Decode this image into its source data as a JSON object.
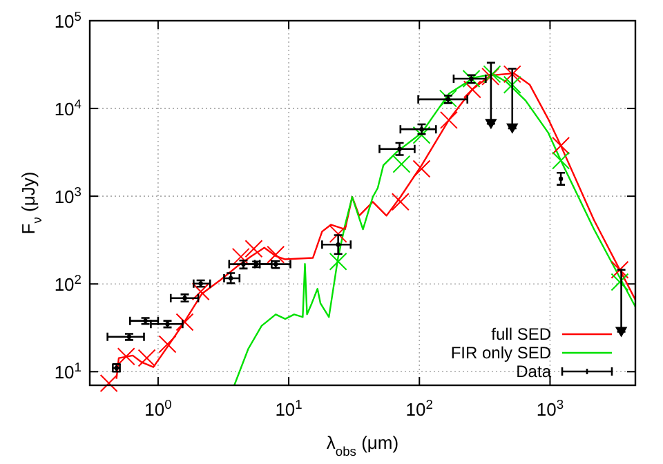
{
  "chart_data": {
    "type": "line",
    "xlabel": "λ$_{obs}$ (μm)",
    "ylabel": "F$_{ν}$ (μJy)",
    "log": "xy",
    "grid": true,
    "legend": "bottom right",
    "xlim": [
      0.3,
      4500
    ],
    "ylim": [
      7,
      100000
    ],
    "xticks": [
      {
        "value": 1,
        "label": "10$^{0}$"
      },
      {
        "value": 10,
        "label": "10$^{1}$"
      },
      {
        "value": 100,
        "label": "10$^{2}$"
      },
      {
        "value": 1000,
        "label": "10$^{3}$"
      }
    ],
    "yticks": [
      {
        "value": 10,
        "label": "10$^{1}$"
      },
      {
        "value": 100,
        "label": "10$^{2}$"
      },
      {
        "value": 1000,
        "label": "10$^{3}$"
      },
      {
        "value": 10000,
        "label": "10$^{4}$"
      },
      {
        "value": 100000,
        "label": "10$^{5}$"
      }
    ],
    "series": [
      {
        "name": "full SED",
        "color": "#ff0000",
        "x": [
          0.48,
          0.5,
          0.64,
          0.75,
          0.92,
          1.22,
          1.56,
          2.17,
          3.0,
          4.15,
          5.2,
          6.5,
          7.95,
          9.4,
          15.3,
          18,
          21,
          27,
          30.6,
          34.6,
          44,
          56,
          71.6,
          104,
          168,
          254,
          350,
          527,
          700,
          970,
          1210,
          2170,
          4500
        ],
        "values": [
          8.3,
          14.3,
          15.3,
          12.8,
          11.3,
          20.6,
          35.3,
          77.6,
          111,
          164,
          208,
          259,
          208,
          191,
          198,
          395,
          473,
          420,
          980,
          600,
          862,
          600,
          980,
          2250,
          7380,
          16500,
          23800,
          25200,
          18600,
          7550,
          3760,
          535,
          66
        ]
      },
      {
        "name": "FIR only SED",
        "color": "#00e000",
        "x": [
          3.83,
          4.9,
          6.2,
          7.95,
          9.4,
          11,
          12.8,
          13.3,
          13.8,
          15,
          16.6,
          17.5,
          20.3,
          23.9,
          27,
          30.6,
          37,
          44,
          48,
          53,
          68,
          104,
          168,
          263,
          366,
          465,
          650,
          970,
          1210,
          2170,
          4500
        ],
        "values": [
          7,
          18.2,
          33.3,
          45,
          40,
          45,
          42,
          169,
          45,
          60,
          88,
          60,
          42,
          203,
          470,
          980,
          420,
          980,
          1240,
          2250,
          3250,
          5270,
          14700,
          22500,
          24600,
          20000,
          12300,
          5270,
          2550,
          420,
          55
        ]
      },
      {
        "type": "scatter",
        "color": "#ff0000",
        "marker": "cross",
        "x": [
          0.42,
          0.57,
          0.82,
          1.18,
          1.6,
          2.12,
          4.3,
          5.4,
          7.95,
          23.9,
          71.6,
          104,
          168,
          254,
          350,
          514,
          1210,
          3420
        ],
        "values": [
          7.4,
          14.9,
          14.3,
          20.6,
          36.7,
          82,
          204,
          252,
          216,
          371,
          863,
          2050,
          7380,
          16500,
          23100,
          24600,
          3760,
          145
        ]
      },
      {
        "type": "scatter",
        "color": "#00e000",
        "marker": "cross",
        "x": [
          23.9,
          73,
          104,
          166,
          250,
          360,
          514,
          1210,
          3420
        ],
        "values": [
          180,
          2320,
          4960,
          13000,
          21800,
          24600,
          18600,
          2550,
          105
        ]
      },
      {
        "name": "Data",
        "type": "scatter",
        "color": "#000000",
        "marker": "circle",
        "x": [
          0.48,
          0.6,
          0.8,
          1.18,
          1.6,
          2.12,
          3.6,
          4.5,
          5.65,
          7.95,
          23.9,
          70.5,
          104,
          166,
          250,
          1210
        ],
        "values": [
          11,
          25,
          38,
          35,
          69,
          101,
          116,
          168,
          168,
          168,
          281,
          3450,
          5800,
          12700,
          21800,
          1580
        ],
        "errors": [
          [
            10,
            12.2
          ],
          [
            23,
            27
          ],
          [
            35,
            41
          ],
          [
            32,
            38
          ],
          [
            63,
            76
          ],
          [
            93,
            110
          ],
          [
            102,
            133
          ],
          [
            150,
            185
          ],
          [
            155,
            180
          ],
          [
            152,
            182
          ],
          [
            220,
            360
          ],
          [
            2950,
            4050
          ],
          [
            5100,
            6600
          ],
          [
            11500,
            14000
          ],
          [
            19500,
            24000
          ],
          [
            1350,
            1850
          ]
        ],
        "xerrors": [
          [
            0.45,
            0.51
          ],
          [
            0.41,
            0.78
          ],
          [
            0.61,
            1.0
          ],
          [
            0.88,
            1.54
          ],
          [
            1.25,
            2.03
          ],
          [
            1.87,
            2.5
          ],
          [
            3.2,
            4.2
          ],
          [
            3.5,
            5.5
          ],
          [
            4.5,
            7.4
          ],
          [
            6.0,
            10.3
          ],
          [
            18,
            29.8
          ],
          [
            49.5,
            92
          ],
          [
            71.6,
            134
          ],
          [
            98,
            233
          ],
          [
            183,
            322
          ],
          null
        ]
      },
      {
        "type": "scatter",
        "color": "#000000",
        "marker": "triangle",
        "x": [
          353,
          514,
          3510
        ],
        "values": [
          6700,
          5940,
          28.5
        ],
        "errors": [
          [
            6700,
            33200
          ],
          [
            5940,
            28400
          ],
          [
            28.5,
            145
          ]
        ]
      }
    ]
  }
}
